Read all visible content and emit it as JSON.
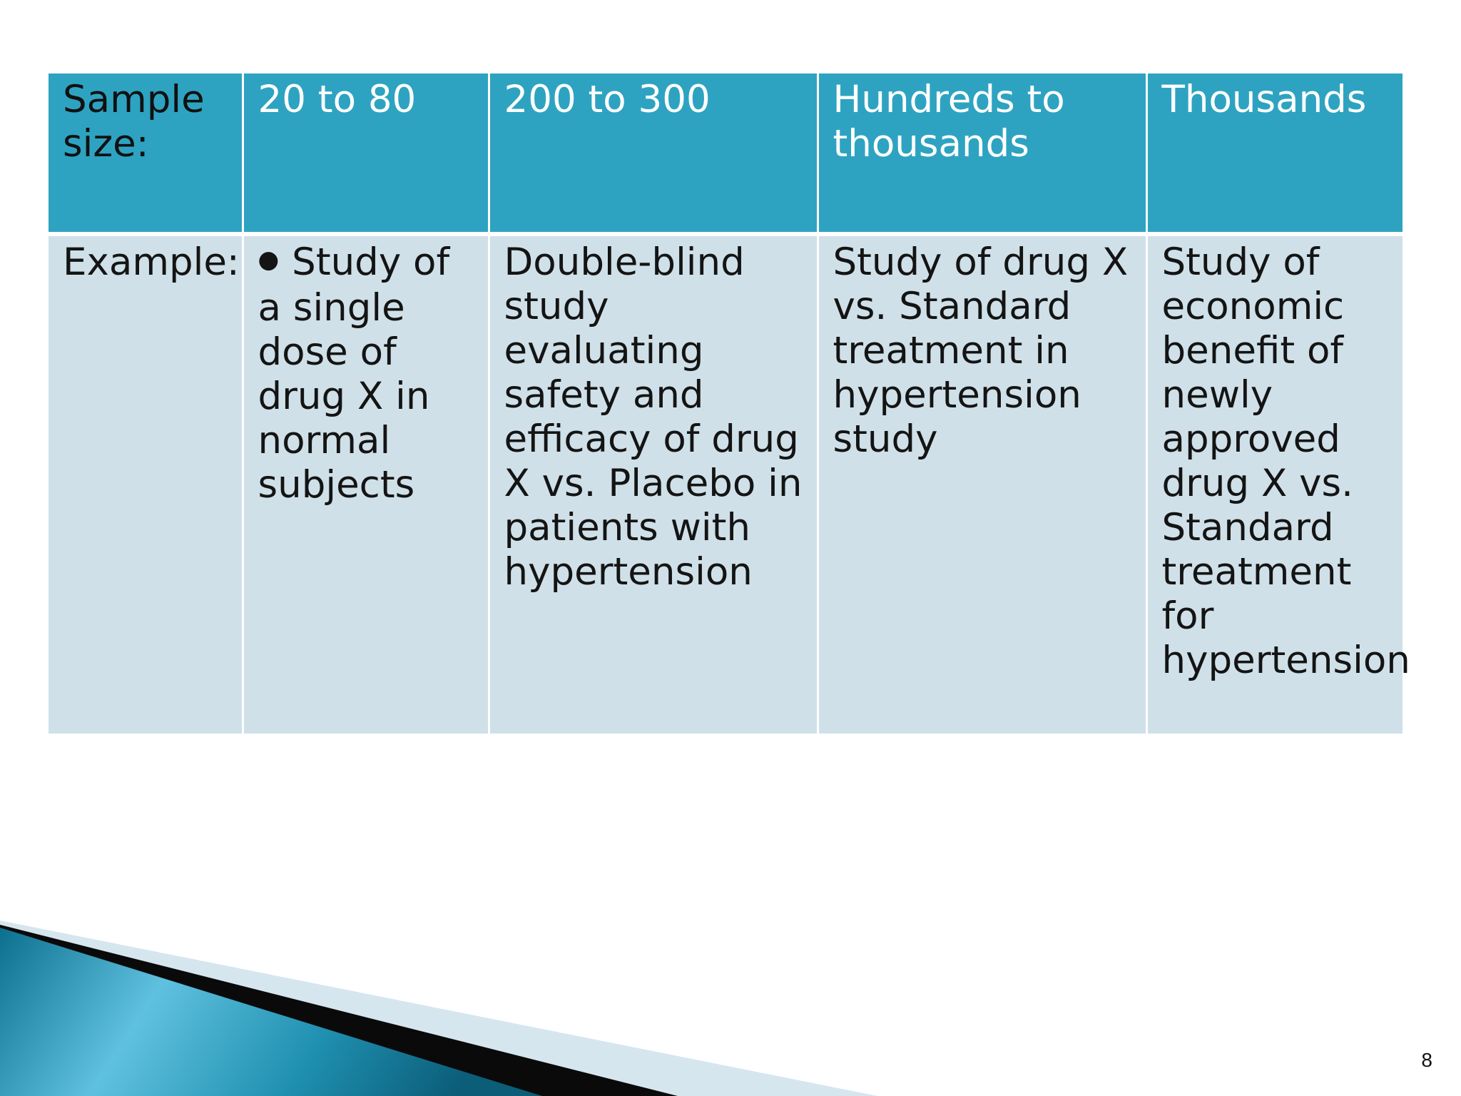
{
  "slide": {
    "page_number": "8"
  },
  "table": {
    "header_row": {
      "label": "Sample size:",
      "cells": [
        "20 to 80",
        "200 to 300",
        "Hundreds to thousands",
        "Thousands"
      ]
    },
    "example_row": {
      "label": "Example:",
      "cells": [
        "Study of a single dose of drug X in normal subjects",
        "Double-blind study evaluating safety and efficacy of drug X vs. Placebo in patients with hypertension",
        "Study of drug X vs. Standard treatment in hypertension study",
        "Study of economic benefit of newly approved drug X vs. Standard treatment for hypertension"
      ]
    }
  },
  "colors": {
    "header_fill": "#2ea3c1",
    "body_fill": "#cfe0e8",
    "accent_dark": "#0b6f8c",
    "accent_light": "#63c3e0"
  },
  "icons": {
    "bullet": "bullet-dot-icon"
  }
}
